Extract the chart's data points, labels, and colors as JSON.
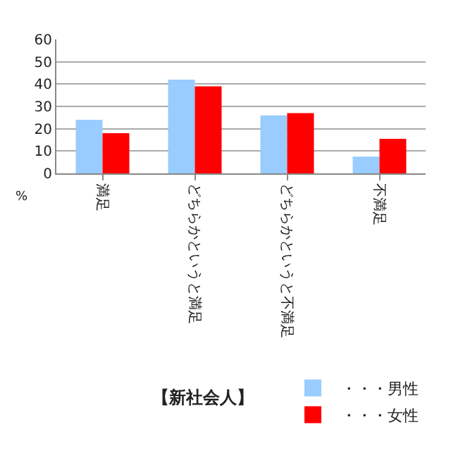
{
  "chart_data": {
    "type": "bar",
    "title": "【新社会人】",
    "ylabel": "%",
    "categories": [
      "満足",
      "どちらかというと満足",
      "どちらかというと不満足",
      "不満足"
    ],
    "series": [
      {
        "name": "・・・男性",
        "color": "#99ccff",
        "values": [
          24,
          42,
          26,
          7.5
        ]
      },
      {
        "name": "・・・女性",
        "color": "#ff0000",
        "values": [
          18,
          39,
          27,
          15.5
        ]
      }
    ],
    "ylim": [
      0,
      60
    ],
    "yticks": [
      0,
      10,
      20,
      30,
      40,
      50,
      60
    ],
    "grid": "y",
    "legend": "bottom right"
  }
}
